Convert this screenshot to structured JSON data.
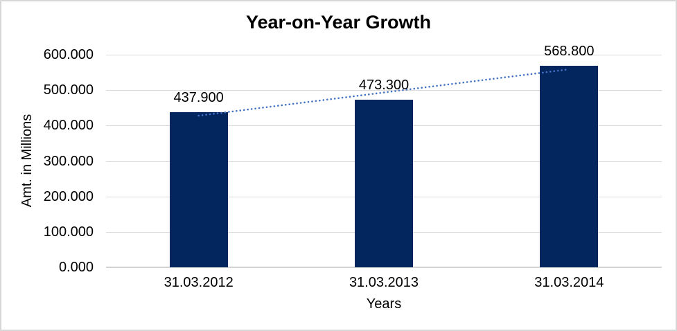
{
  "chart_data": {
    "type": "bar",
    "title": "Year-on-Year Growth",
    "categories": [
      "31.03.2012",
      "31.03.2013",
      "31.03.2014"
    ],
    "values": [
      437.9,
      473.3,
      568.8
    ],
    "value_labels": [
      "437.900",
      "473.300",
      "568.800"
    ],
    "xlabel": "Years",
    "ylabel": "Amt. in Millions",
    "ylim": [
      0,
      600
    ],
    "ytick_step": 100,
    "ytick_labels": [
      "0.000",
      "100.000",
      "200.000",
      "300.000",
      "400.000",
      "500.000",
      "600.000"
    ],
    "grid": true,
    "legend_position": "none",
    "bar_color": "#04265e",
    "gridline_color": "#d9d9d9",
    "trendline": {
      "type": "linear",
      "style": "dotted",
      "color": "#4472c4"
    }
  }
}
